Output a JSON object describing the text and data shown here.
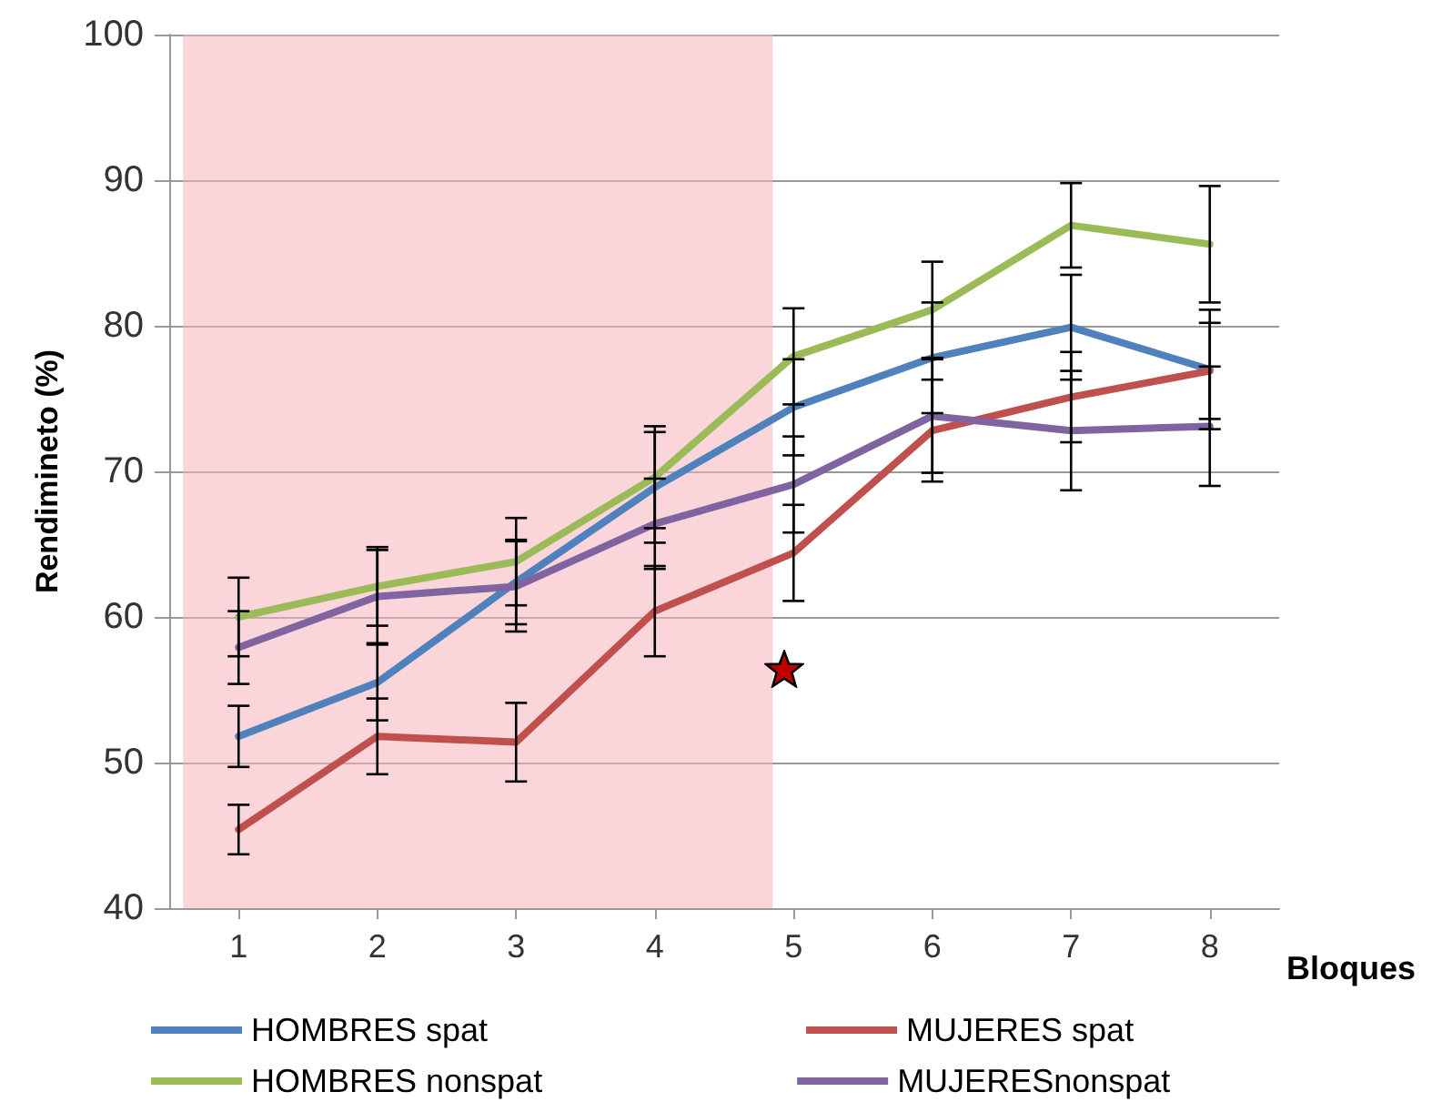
{
  "chart_data": {
    "type": "line",
    "xlabel": "Bloques",
    "ylabel": "Rendimineto (%)",
    "x": [
      1,
      2,
      3,
      4,
      5,
      6,
      7,
      8
    ],
    "xlim": [
      0.5,
      8.5
    ],
    "xticks": [
      1,
      2,
      3,
      4,
      5,
      6,
      7,
      8
    ],
    "ylim": [
      40,
      100
    ],
    "yticks": [
      40,
      50,
      60,
      70,
      80,
      90,
      100
    ],
    "grid": "y",
    "legend": "bottom",
    "marker": "none",
    "line_style": "solid",
    "bands": [
      {
        "axis": "x",
        "from": 0.6,
        "to": 4.85,
        "color": "#f6b3bb"
      }
    ],
    "series": [
      {
        "name": "HOMBRES spat",
        "color": "#4f81bd",
        "values": [
          51.8,
          55.5,
          62.4,
          68.9,
          74.4,
          77.8,
          79.9,
          77.0
        ],
        "errors": [
          2.1,
          2.6,
          2.9,
          3.8,
          3.3,
          3.8,
          3.6,
          4.1
        ]
      },
      {
        "name": "MUJERES spat",
        "color": "#c0504d",
        "values": [
          45.4,
          51.8,
          51.4,
          60.4,
          64.4,
          72.8,
          75.1,
          76.9
        ],
        "errors": [
          1.7,
          2.6,
          2.7,
          3.1,
          3.3,
          3.5,
          3.1,
          3.3
        ]
      },
      {
        "name": "HOMBRES nonspat",
        "color": "#9bbb59",
        "values": [
          60.0,
          62.1,
          63.8,
          69.6,
          77.9,
          81.1,
          86.9,
          85.6
        ],
        "errors": [
          2.7,
          2.7,
          3.0,
          3.5,
          3.3,
          3.3,
          2.9,
          4.0
        ]
      },
      {
        "name": "MUJERESnonspat",
        "color": "#8064a2",
        "values": [
          57.9,
          61.4,
          62.1,
          66.4,
          69.1,
          73.8,
          72.8,
          73.1
        ],
        "errors": [
          2.5,
          3.2,
          3.1,
          3.1,
          3.3,
          3.9,
          4.1,
          4.1
        ]
      }
    ]
  }
}
